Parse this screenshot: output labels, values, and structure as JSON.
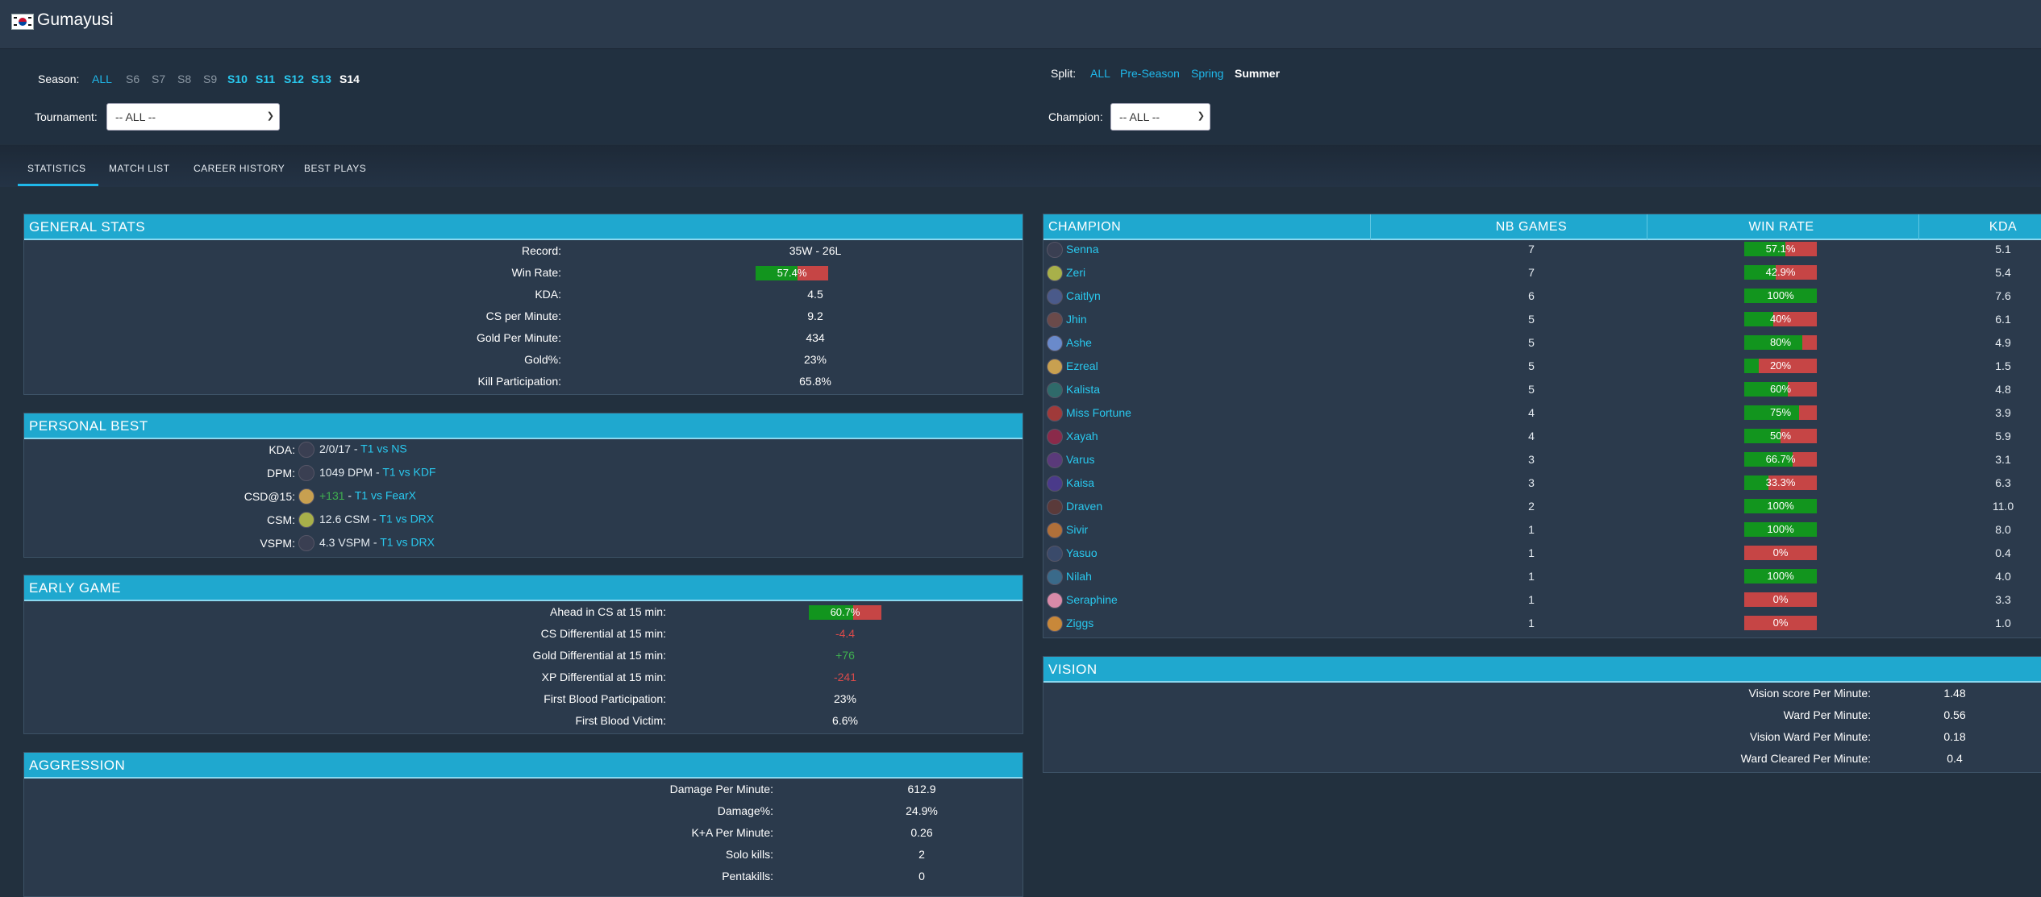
{
  "header": {
    "player_name": "Gumayusi",
    "flag": "south-korea-flag-icon"
  },
  "filters": {
    "season_label": "Season:",
    "seasons": [
      "ALL",
      "S6",
      "S7",
      "S8",
      "S9",
      "S10",
      "S11",
      "S12",
      "S13",
      "S14"
    ],
    "split_label": "Split:",
    "splits": [
      "ALL",
      "Pre-Season",
      "Spring",
      "Summer"
    ],
    "tournament_label": "Tournament:",
    "tournament_value": "-- ALL --",
    "champion_label": "Champion:",
    "champion_value": "-- ALL --"
  },
  "tabs": [
    "STATISTICS",
    "MATCH LIST",
    "CAREER HISTORY",
    "BEST PLAYS"
  ],
  "general": {
    "title": "GENERAL STATS",
    "rows": [
      {
        "label": "Record:",
        "value": "35W - 26L"
      },
      {
        "label": "Win Rate:",
        "value": "57.4%",
        "pct": 57.4
      },
      {
        "label": "KDA:",
        "value": "4.5"
      },
      {
        "label": "CS per Minute:",
        "value": "9.2"
      },
      {
        "label": "Gold Per Minute:",
        "value": "434"
      },
      {
        "label": "Gold%:",
        "value": "23%"
      },
      {
        "label": "Kill Participation:",
        "value": "65.8%"
      }
    ]
  },
  "personal_best": {
    "title": "PERSONAL BEST",
    "rows": [
      {
        "label": "KDA:",
        "champ": "Senna",
        "value": "2/0/17",
        "match": "T1 vs NS"
      },
      {
        "label": "DPM:",
        "champ": "Senna",
        "value": "1049 DPM",
        "match": "T1 vs KDF"
      },
      {
        "label": "CSD@15:",
        "champ": "Ezreal",
        "value": "+131",
        "match": "T1 vs FearX"
      },
      {
        "label": "CSM:",
        "champ": "Zeri",
        "value": "12.6 CSM",
        "match": "T1 vs DRX"
      },
      {
        "label": "VSPM:",
        "champ": "Senna",
        "value": "4.3 VSPM",
        "match": "T1 vs DRX"
      }
    ]
  },
  "early": {
    "title": "EARLY GAME",
    "rows": [
      {
        "label": "Ahead in CS at 15 min:",
        "value": "60.7%",
        "pct": 60.7
      },
      {
        "label": "CS Differential at 15 min:",
        "value": "-4.4"
      },
      {
        "label": "Gold Differential at 15 min:",
        "value": "+76"
      },
      {
        "label": "XP Differential at 15 min:",
        "value": "-241"
      },
      {
        "label": "First Blood Participation:",
        "value": "23%"
      },
      {
        "label": "First Blood Victim:",
        "value": "6.6%"
      }
    ]
  },
  "aggression": {
    "title": "AGGRESSION",
    "rows": [
      {
        "label": "Damage Per Minute:",
        "value": "612.9"
      },
      {
        "label": "Damage%:",
        "value": "24.9%"
      },
      {
        "label": "K+A Per Minute:",
        "value": "0.26"
      },
      {
        "label": "Solo kills:",
        "value": "2"
      },
      {
        "label": "Pentakills:",
        "value": "0"
      }
    ]
  },
  "champions": {
    "headers": [
      "CHAMPION",
      "NB GAMES",
      "WIN RATE",
      "KDA"
    ],
    "rows": [
      {
        "name": "Senna",
        "games": "7",
        "winrate": "57.1%",
        "pct": 57.1,
        "kda": "5.1",
        "color": "#3a3f52"
      },
      {
        "name": "Zeri",
        "games": "7",
        "winrate": "42.9%",
        "pct": 42.9,
        "kda": "5.4",
        "color": "#a8b04a"
      },
      {
        "name": "Caitlyn",
        "games": "6",
        "winrate": "100%",
        "pct": 100,
        "kda": "7.6",
        "color": "#4a5a8a"
      },
      {
        "name": "Jhin",
        "games": "5",
        "winrate": "40%",
        "pct": 40,
        "kda": "6.1",
        "color": "#6a4a4a"
      },
      {
        "name": "Ashe",
        "games": "5",
        "winrate": "80%",
        "pct": 80,
        "kda": "4.9",
        "color": "#6a8acb"
      },
      {
        "name": "Ezreal",
        "games": "5",
        "winrate": "20%",
        "pct": 20,
        "kda": "1.5",
        "color": "#c8a050"
      },
      {
        "name": "Kalista",
        "games": "5",
        "winrate": "60%",
        "pct": 60,
        "kda": "4.8",
        "color": "#2f6a6a"
      },
      {
        "name": "Miss Fortune",
        "games": "4",
        "winrate": "75%",
        "pct": 75,
        "kda": "3.9",
        "color": "#a03a3a"
      },
      {
        "name": "Xayah",
        "games": "4",
        "winrate": "50%",
        "pct": 50,
        "kda": "5.9",
        "color": "#8a2a4a"
      },
      {
        "name": "Varus",
        "games": "3",
        "winrate": "66.7%",
        "pct": 66.7,
        "kda": "3.1",
        "color": "#5a3a7a"
      },
      {
        "name": "Kaisa",
        "games": "3",
        "winrate": "33.3%",
        "pct": 33.3,
        "kda": "6.3",
        "color": "#4a3a8a"
      },
      {
        "name": "Draven",
        "games": "2",
        "winrate": "100%",
        "pct": 100,
        "kda": "11.0",
        "color": "#5a3a3a"
      },
      {
        "name": "Sivir",
        "games": "1",
        "winrate": "100%",
        "pct": 100,
        "kda": "8.0",
        "color": "#b0703a"
      },
      {
        "name": "Yasuo",
        "games": "1",
        "winrate": "0%",
        "pct": 0,
        "kda": "0.4",
        "color": "#3a4a6a"
      },
      {
        "name": "Nilah",
        "games": "1",
        "winrate": "100%",
        "pct": 100,
        "kda": "4.0",
        "color": "#3a6a8a"
      },
      {
        "name": "Seraphine",
        "games": "1",
        "winrate": "0%",
        "pct": 0,
        "kda": "3.3",
        "color": "#d88aa8"
      },
      {
        "name": "Ziggs",
        "games": "1",
        "winrate": "0%",
        "pct": 0,
        "kda": "1.0",
        "color": "#c8883a"
      }
    ]
  },
  "vision": {
    "title": "VISION",
    "rows": [
      {
        "label": "Vision score Per Minute:",
        "value": "1.48"
      },
      {
        "label": "Ward Per Minute:",
        "value": "0.56"
      },
      {
        "label": "Vision Ward Per Minute:",
        "value": "0.18"
      },
      {
        "label": "Ward Cleared Per Minute:",
        "value": "0.4"
      }
    ]
  },
  "colors": {
    "accent": "#1fa8cf",
    "win": "#12951e",
    "loss": "#c64545",
    "link": "#29c8ee"
  }
}
